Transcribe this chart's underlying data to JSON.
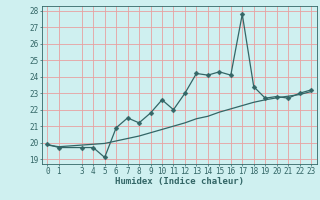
{
  "title": "",
  "xlabel": "Humidex (Indice chaleur)",
  "ylabel": "",
  "bg_color": "#cff0f0",
  "line_color": "#336666",
  "grid_color": "#e8a0a0",
  "x_ticks": [
    0,
    1,
    3,
    4,
    5,
    6,
    7,
    8,
    9,
    10,
    11,
    12,
    13,
    14,
    15,
    16,
    17,
    18,
    19,
    20,
    21,
    22,
    23
  ],
  "ylim": [
    18.7,
    28.3
  ],
  "xlim": [
    -0.5,
    23.5
  ],
  "yticks": [
    19,
    20,
    21,
    22,
    23,
    24,
    25,
    26,
    27,
    28
  ],
  "line1_x": [
    0,
    1,
    3,
    4,
    5,
    6,
    7,
    8,
    9,
    10,
    11,
    12,
    13,
    14,
    15,
    16,
    17,
    18,
    19,
    20,
    21,
    22,
    23
  ],
  "line1_y": [
    19.9,
    19.7,
    19.7,
    19.7,
    19.1,
    20.9,
    21.5,
    21.2,
    21.8,
    22.6,
    22.0,
    23.0,
    24.2,
    24.1,
    24.3,
    24.1,
    27.8,
    23.4,
    22.7,
    22.8,
    22.7,
    23.0,
    23.2
  ],
  "line2_x": [
    0,
    1,
    3,
    4,
    5,
    6,
    7,
    8,
    9,
    10,
    11,
    12,
    13,
    14,
    15,
    16,
    17,
    18,
    19,
    20,
    21,
    22,
    23
  ],
  "line2_y": [
    19.85,
    19.75,
    19.85,
    19.9,
    19.95,
    20.1,
    20.25,
    20.4,
    20.6,
    20.8,
    21.0,
    21.2,
    21.45,
    21.6,
    21.85,
    22.05,
    22.25,
    22.45,
    22.6,
    22.72,
    22.82,
    22.92,
    23.1
  ],
  "marker_size": 2.5,
  "line_width": 0.9,
  "tick_fontsize": 5.5,
  "label_fontsize": 6.5
}
